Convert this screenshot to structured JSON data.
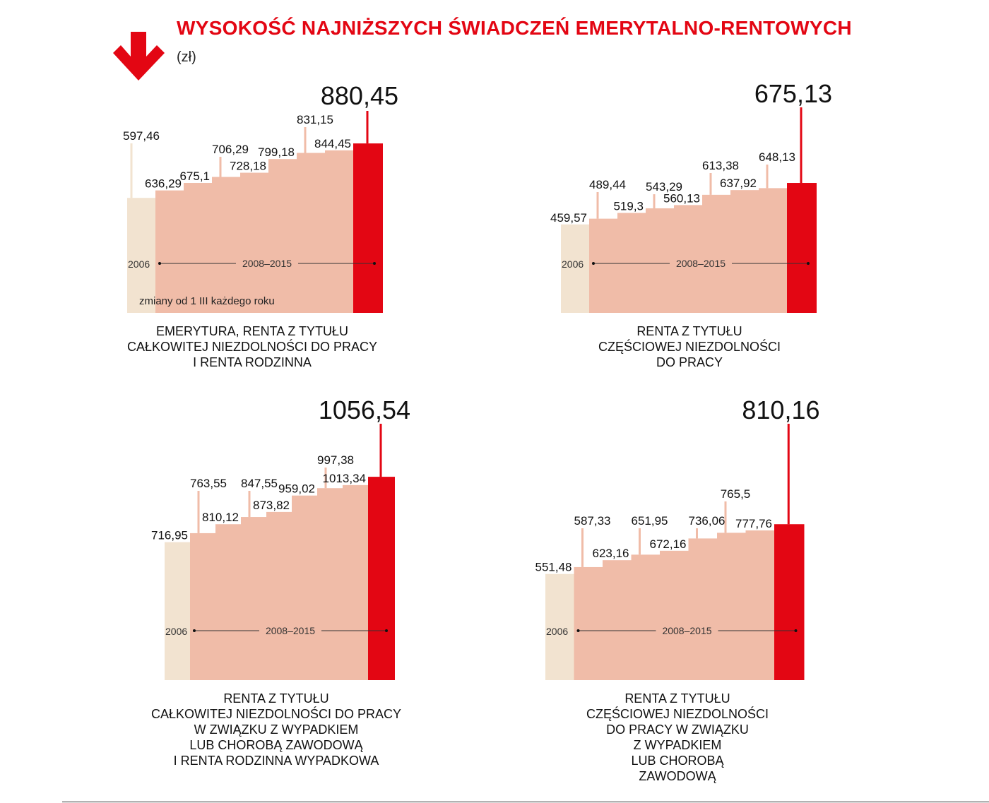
{
  "header": {
    "title": "WYSOKOŚĆ NAJNIŻSZYCH ŚWIADCZEŃ EMERYTALNO-RENTOWYCH",
    "unit": "(zł)",
    "icon": "down-arrow-icon"
  },
  "colors": {
    "accent": "#e30613",
    "base_2006": "#f2e3d0",
    "steps": "#f0bca8",
    "leader": "#f0bca8"
  },
  "chart_data": [
    {
      "type": "bar",
      "title": "EMERYTURA, RENTA Z TYTUŁU CAŁKOWITEJ NIEZDOLNOŚCI DO PRACY I RENTA RODZINNA",
      "caption_lines": [
        "EMERYTURA, RENTA Z TYTUŁU",
        "CAŁKOWITEJ NIEZDOLNOŚCI DO PRACY",
        "I RENTA RODZINNA"
      ],
      "base_label": "2006",
      "period_label": "2008–2015",
      "note": "zmiany od 1 III każdego roku",
      "base_value": 597.46,
      "step_values": [
        636.29,
        675.1,
        706.29,
        728.18,
        799.18,
        831.15,
        844.45
      ],
      "final_value": 880.45,
      "value_labels": [
        "597,46",
        "636,29",
        "675,1",
        "706,29",
        "728,18",
        "799,18",
        "831,15",
        "844,45"
      ],
      "final_label": "880,45"
    },
    {
      "type": "bar",
      "title": "RENTA Z TYTUŁU CZĘŚCIOWEJ NIEZDOLNOŚCI DO PRACY",
      "caption_lines": [
        "RENTA Z TYTUŁU",
        "CZĘŚCIOWEJ NIEZDOLNOŚCI",
        "DO PRACY"
      ],
      "base_label": "2006",
      "period_label": "2008–2015",
      "base_value": 459.57,
      "step_values": [
        489.44,
        519.3,
        543.29,
        560.13,
        613.38,
        637.92,
        648.13
      ],
      "final_value": 675.13,
      "value_labels": [
        "459,57",
        "489,44",
        "519,3",
        "543,29",
        "560,13",
        "613,38",
        "637,92",
        "648,13"
      ],
      "final_label": "675,13"
    },
    {
      "type": "bar",
      "title": "RENTA Z TYTUŁU CAŁKOWITEJ NIEZDOLNOŚCI DO PRACY W ZWIĄZKU Z WYPADKIEM LUB CHOROBĄ ZAWODOWĄ I RENTA RODZINNA WYPADKOWA",
      "caption_lines": [
        "RENTA Z TYTUŁU",
        "CAŁKOWITEJ NIEZDOLNOŚCI DO PRACY",
        "W ZWIĄZKU Z WYPADKIEM",
        "LUB CHOROBĄ ZAWODOWĄ",
        "I RENTA RODZINNA WYPADKOWA"
      ],
      "base_label": "2006",
      "period_label": "2008–2015",
      "base_value": 716.95,
      "step_values": [
        763.55,
        810.12,
        847.55,
        873.82,
        959.02,
        997.38,
        1013.34
      ],
      "final_value": 1056.54,
      "value_labels": [
        "716,95",
        "763,55",
        "810,12",
        "847,55",
        "873,82",
        "959,02",
        "997,38",
        "1013,34"
      ],
      "final_label": "1056,54"
    },
    {
      "type": "bar",
      "title": "RENTA Z TYTUŁU CZĘŚCIOWEJ NIEZDOLNOŚCI DO PRACY W ZWIĄZKU Z WYPADKIEM LUB CHOROBĄ ZAWODOWĄ",
      "caption_lines": [
        "RENTA Z TYTUŁU",
        "CZĘŚCIOWEJ NIEZDOLNOŚCI",
        "DO PRACY W ZWIĄZKU",
        "Z WYPADKIEM",
        "LUB CHOROBĄ",
        "ZAWODOWĄ"
      ],
      "base_label": "2006",
      "period_label": "2008–2015",
      "base_value": 551.48,
      "step_values": [
        587.33,
        623.16,
        651.95,
        672.16,
        736.06,
        765.5,
        777.76
      ],
      "final_value": 810.16,
      "value_labels": [
        "551,48",
        "587,33",
        "623,16",
        "651,95",
        "672,16",
        "736,06",
        "765,5",
        "777,76"
      ],
      "final_label": "810,16"
    }
  ]
}
